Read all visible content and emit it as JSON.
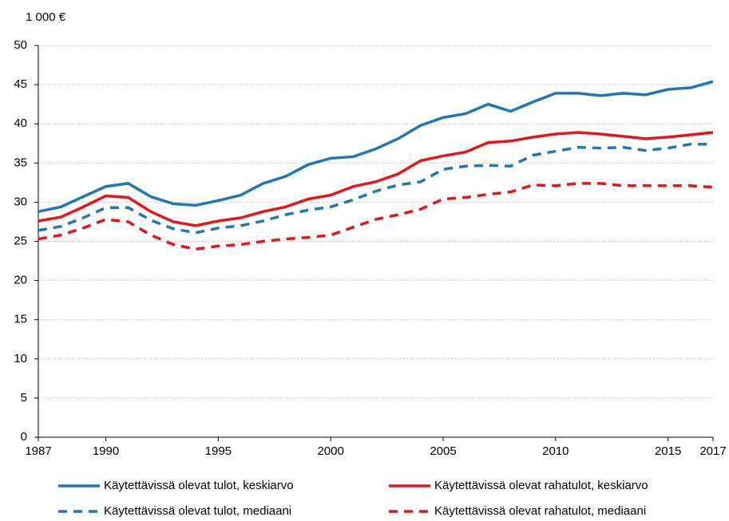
{
  "chart_data": {
    "type": "line",
    "y_unit_label": "1 000 €",
    "x": [
      1987,
      1988,
      1989,
      1990,
      1991,
      1992,
      1993,
      1994,
      1995,
      1996,
      1997,
      1998,
      1999,
      2000,
      2001,
      2002,
      2003,
      2004,
      2005,
      2006,
      2007,
      2008,
      2009,
      2010,
      2011,
      2012,
      2013,
      2014,
      2015,
      2016,
      2017
    ],
    "xlim": [
      1987,
      2017
    ],
    "xticks": [
      1987,
      1990,
      1995,
      2000,
      2005,
      2010,
      2015,
      2017
    ],
    "ylim": [
      0,
      50
    ],
    "yticks": [
      0,
      5,
      10,
      15,
      20,
      25,
      30,
      35,
      40,
      45,
      50
    ],
    "grid": true,
    "series": [
      {
        "name": "Käytettävissä olevat tulot, keskiarvo",
        "color": "#1f77b4",
        "line_style": "solid",
        "values": [
          28.8,
          29.4,
          30.7,
          32.0,
          32.4,
          30.7,
          29.8,
          29.6,
          30.2,
          30.9,
          32.4,
          33.3,
          34.8,
          35.6,
          35.8,
          36.8,
          38.1,
          39.8,
          40.8,
          41.3,
          42.5,
          41.6,
          42.8,
          43.9,
          43.9,
          43.6,
          43.9,
          43.7,
          44.4,
          44.6,
          45.4
        ]
      },
      {
        "name": "Käytettävissä olevat rahatulot, keskiarvo",
        "color": "#e8141b",
        "line_style": "solid",
        "values": [
          27.6,
          28.1,
          29.4,
          30.8,
          30.6,
          28.8,
          27.5,
          27.0,
          27.6,
          28.0,
          28.8,
          29.4,
          30.4,
          30.9,
          32.0,
          32.6,
          33.6,
          35.3,
          35.9,
          36.4,
          37.6,
          37.8,
          38.3,
          38.7,
          38.9,
          38.7,
          38.4,
          38.1,
          38.3,
          38.6,
          38.9
        ]
      },
      {
        "name": "Käytettävissä olevat tulot, mediaani",
        "color": "#1f77b4",
        "line_style": "dashed",
        "values": [
          26.4,
          26.9,
          28.0,
          29.3,
          29.3,
          27.7,
          26.6,
          26.1,
          26.7,
          27.0,
          27.6,
          28.4,
          29.0,
          29.4,
          30.3,
          31.4,
          32.2,
          32.6,
          34.2,
          34.6,
          34.7,
          34.6,
          36.0,
          36.5,
          37.0,
          36.9,
          37.0,
          36.6,
          36.9,
          37.4,
          37.4
        ]
      },
      {
        "name": "Käytettävissä olevat rahatulot, mediaani",
        "color": "#e8141b",
        "line_style": "dashed",
        "values": [
          25.3,
          25.8,
          26.7,
          27.8,
          27.5,
          25.8,
          24.6,
          24.0,
          24.4,
          24.6,
          25.0,
          25.3,
          25.5,
          25.8,
          26.8,
          27.8,
          28.4,
          29.1,
          30.4,
          30.6,
          31.0,
          31.3,
          32.2,
          32.1,
          32.4,
          32.4,
          32.1,
          32.1,
          32.1,
          32.1,
          31.9
        ]
      }
    ]
  }
}
